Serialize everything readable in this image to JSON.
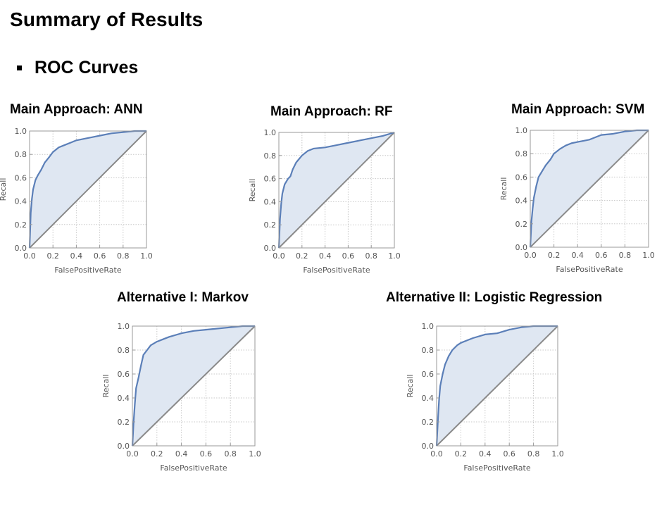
{
  "slide": {
    "title": "Summary of Results",
    "bullet": "ROC Curves"
  },
  "colors": {
    "curve": "#5b7fb8",
    "fill": "#dfe7f2",
    "diagonal": "#8a8a8a",
    "grid": "#c8c8c8",
    "frame": "#9a9a9a"
  },
  "chart_data": [
    {
      "type": "area",
      "title": "Main Approach: ANN",
      "xlabel": "FalsePositiveRate",
      "ylabel": "Recall",
      "xlim": [
        0,
        1
      ],
      "ylim": [
        0,
        1
      ],
      "xticks": [
        "0.0",
        "0.2",
        "0.4",
        "0.6",
        "0.8",
        "1.0"
      ],
      "yticks": [
        "0.0",
        "0.2",
        "0.4",
        "0.6",
        "0.8",
        "1.0"
      ],
      "grid": true,
      "diagonal": true,
      "roc": {
        "x": [
          0,
          0.01,
          0.02,
          0.03,
          0.05,
          0.07,
          0.1,
          0.13,
          0.17,
          0.2,
          0.25,
          0.3,
          0.35,
          0.4,
          0.5,
          0.6,
          0.7,
          0.8,
          0.9,
          1.0
        ],
        "y": [
          0,
          0.3,
          0.42,
          0.5,
          0.58,
          0.62,
          0.67,
          0.73,
          0.78,
          0.82,
          0.86,
          0.88,
          0.9,
          0.92,
          0.94,
          0.96,
          0.98,
          0.99,
          1.0,
          1.0
        ]
      }
    },
    {
      "type": "area",
      "title": "Main Approach: RF",
      "xlabel": "FalsePositiveRate",
      "ylabel": "Recall",
      "xlim": [
        0,
        1
      ],
      "ylim": [
        0,
        1
      ],
      "xticks": [
        "0.0",
        "0.2",
        "0.4",
        "0.6",
        "0.8",
        "1.0"
      ],
      "yticks": [
        "0.0",
        "0.2",
        "0.4",
        "0.6",
        "0.8",
        "1.0"
      ],
      "grid": true,
      "diagonal": true,
      "roc": {
        "x": [
          0,
          0.01,
          0.02,
          0.03,
          0.05,
          0.08,
          0.1,
          0.12,
          0.15,
          0.2,
          0.25,
          0.3,
          0.4,
          0.5,
          0.6,
          0.7,
          0.8,
          0.9,
          1.0
        ],
        "y": [
          0,
          0.25,
          0.38,
          0.47,
          0.55,
          0.6,
          0.62,
          0.68,
          0.74,
          0.8,
          0.84,
          0.86,
          0.87,
          0.89,
          0.91,
          0.93,
          0.95,
          0.97,
          1.0
        ]
      }
    },
    {
      "type": "area",
      "title": "Main Approach: SVM",
      "xlabel": "FalsePositiveRate",
      "ylabel": "Recall",
      "xlim": [
        0,
        1
      ],
      "ylim": [
        0,
        1
      ],
      "xticks": [
        "0.0",
        "0.2",
        "0.4",
        "0.6",
        "0.8",
        "1.0"
      ],
      "yticks": [
        "0.0",
        "0.2",
        "0.4",
        "0.6",
        "0.8",
        "1.0"
      ],
      "grid": true,
      "diagonal": true,
      "roc": {
        "x": [
          0,
          0.01,
          0.02,
          0.03,
          0.05,
          0.07,
          0.1,
          0.13,
          0.17,
          0.2,
          0.25,
          0.3,
          0.35,
          0.4,
          0.5,
          0.6,
          0.7,
          0.8,
          0.9,
          1.0
        ],
        "y": [
          0,
          0.22,
          0.33,
          0.42,
          0.52,
          0.6,
          0.65,
          0.7,
          0.75,
          0.8,
          0.84,
          0.87,
          0.89,
          0.9,
          0.92,
          0.96,
          0.97,
          0.99,
          1.0,
          1.0
        ]
      }
    },
    {
      "type": "area",
      "title": "Alternative I: Markov",
      "xlabel": "FalsePositiveRate",
      "ylabel": "Recall",
      "xlim": [
        0,
        1
      ],
      "ylim": [
        0,
        1
      ],
      "xticks": [
        "0.0",
        "0.2",
        "0.4",
        "0.6",
        "0.8",
        "1.0"
      ],
      "yticks": [
        "0.0",
        "0.2",
        "0.4",
        "0.6",
        "0.8",
        "1.0"
      ],
      "grid": true,
      "diagonal": true,
      "roc": {
        "x": [
          0,
          0.01,
          0.02,
          0.03,
          0.05,
          0.07,
          0.09,
          0.12,
          0.15,
          0.2,
          0.25,
          0.3,
          0.4,
          0.5,
          0.6,
          0.7,
          0.8,
          0.9,
          1.0
        ],
        "y": [
          0,
          0.2,
          0.35,
          0.48,
          0.57,
          0.67,
          0.76,
          0.8,
          0.84,
          0.87,
          0.89,
          0.91,
          0.94,
          0.96,
          0.97,
          0.98,
          0.99,
          1.0,
          1.0
        ]
      }
    },
    {
      "type": "area",
      "title": "Alternative II: Logistic Regression",
      "xlabel": "FalsePositiveRate",
      "ylabel": "Recall",
      "xlim": [
        0,
        1
      ],
      "ylim": [
        0,
        1
      ],
      "xticks": [
        "0.0",
        "0.2",
        "0.4",
        "0.6",
        "0.8",
        "1.0"
      ],
      "yticks": [
        "0.0",
        "0.2",
        "0.4",
        "0.6",
        "0.8",
        "1.0"
      ],
      "grid": true,
      "diagonal": true,
      "roc": {
        "x": [
          0,
          0.01,
          0.02,
          0.03,
          0.05,
          0.07,
          0.1,
          0.13,
          0.17,
          0.2,
          0.25,
          0.3,
          0.4,
          0.5,
          0.6,
          0.7,
          0.8,
          0.9,
          1.0
        ],
        "y": [
          0,
          0.2,
          0.38,
          0.5,
          0.6,
          0.68,
          0.75,
          0.8,
          0.84,
          0.86,
          0.88,
          0.9,
          0.93,
          0.94,
          0.97,
          0.99,
          1.0,
          1.0,
          1.0
        ]
      }
    }
  ]
}
